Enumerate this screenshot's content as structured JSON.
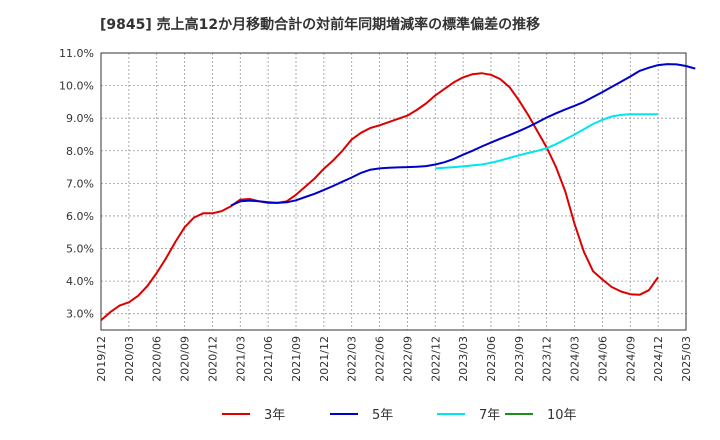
{
  "chart_data": {
    "type": "line",
    "title": "[9845]  売上高12か月移動合計の対前年同期増減率の標準偏差の推移",
    "xlabel": "",
    "ylabel": "",
    "ylim": [
      2.5,
      11.0
    ],
    "y_ticks": [
      "3.0%",
      "4.0%",
      "5.0%",
      "6.0%",
      "7.0%",
      "8.0%",
      "9.0%",
      "10.0%",
      "11.0%"
    ],
    "y_tick_values": [
      3,
      4,
      5,
      6,
      7,
      8,
      9,
      10,
      11
    ],
    "x_ticks": [
      "2019/12",
      "2020/03",
      "2020/06",
      "2020/09",
      "2020/12",
      "2021/03",
      "2021/06",
      "2021/09",
      "2021/12",
      "2022/03",
      "2022/06",
      "2022/09",
      "2022/12",
      "2023/03",
      "2023/06",
      "2023/09",
      "2023/12",
      "2024/03",
      "2024/06",
      "2024/09",
      "2024/12",
      "2025/03"
    ],
    "grid": true,
    "legend_position": "bottom",
    "series": [
      {
        "name": "3年",
        "color": "#dd0000",
        "start": "2019/12",
        "values": [
          2.8,
          3.05,
          3.25,
          3.35,
          3.55,
          3.85,
          4.25,
          4.7,
          5.2,
          5.65,
          5.95,
          6.08,
          6.08,
          6.15,
          6.3,
          6.5,
          6.52,
          6.45,
          6.4,
          6.4,
          6.45,
          6.65,
          6.9,
          7.15,
          7.45,
          7.7,
          8.0,
          8.35,
          8.55,
          8.7,
          8.78,
          8.88,
          8.98,
          9.08,
          9.25,
          9.45,
          9.7,
          9.9,
          10.1,
          10.25,
          10.35,
          10.38,
          10.33,
          10.2,
          9.95,
          9.55,
          9.1,
          8.6,
          8.1,
          7.5,
          6.75,
          5.75,
          4.9,
          4.3,
          4.05,
          3.82,
          3.68,
          3.6,
          3.58,
          3.72,
          4.12
        ]
      },
      {
        "name": "5年",
        "color": "#0000cc",
        "start": "2021/02",
        "values": [
          6.32,
          6.45,
          6.47,
          6.45,
          6.42,
          6.4,
          6.42,
          6.48,
          6.58,
          6.68,
          6.8,
          6.92,
          7.05,
          7.18,
          7.32,
          7.42,
          7.46,
          7.48,
          7.49,
          7.5,
          7.51,
          7.53,
          7.58,
          7.65,
          7.75,
          7.88,
          8.0,
          8.13,
          8.25,
          8.37,
          8.48,
          8.6,
          8.73,
          8.87,
          9.02,
          9.15,
          9.27,
          9.38,
          9.5,
          9.65,
          9.8,
          9.96,
          10.12,
          10.28,
          10.45,
          10.55,
          10.63,
          10.66,
          10.65,
          10.6,
          10.52
        ]
      },
      {
        "name": "7年",
        "color": "#00e5ee",
        "start": "2022/12",
        "values": [
          7.46,
          7.48,
          7.5,
          7.52,
          7.55,
          7.58,
          7.63,
          7.7,
          7.78,
          7.86,
          7.93,
          8.0,
          8.08,
          8.2,
          8.35,
          8.5,
          8.66,
          8.82,
          8.95,
          9.05,
          9.1,
          9.12,
          9.12,
          9.12,
          9.12
        ]
      },
      {
        "name": "10年",
        "color": "#228b22",
        "start": "",
        "values": []
      }
    ]
  }
}
